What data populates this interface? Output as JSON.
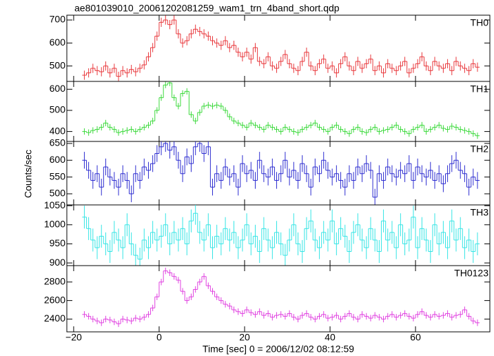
{
  "chart_data": {
    "type": "step",
    "title": "ae801039010_20061202081259_wam1_trn_4band_short.qdp",
    "xlabel": "Time [sec] 0 = 2006/12/02 08:12:59",
    "ylabel": "Counts/sec",
    "xlim": [
      -21.6,
      77.4
    ],
    "xticks": [
      {
        "value": -20,
        "label": "−20"
      },
      0,
      20,
      40,
      60
    ],
    "x": [
      -17.5,
      -16.5,
      -15.5,
      -14.5,
      -13.5,
      -12.5,
      -11.5,
      -10.5,
      -9.5,
      -8.5,
      -7.5,
      -6.5,
      -5.5,
      -4.5,
      -3.5,
      -2.5,
      -1.5,
      -0.5,
      0.5,
      1.5,
      2.5,
      3.5,
      4.5,
      5.5,
      6.5,
      7.5,
      8.5,
      9.5,
      10.5,
      11.5,
      12.5,
      13.5,
      14.5,
      15.5,
      16.5,
      17.5,
      18.5,
      19.5,
      20.5,
      21.5,
      22.5,
      23.5,
      24.5,
      25.5,
      26.5,
      27.5,
      28.5,
      29.5,
      30.5,
      31.5,
      32.5,
      33.5,
      34.5,
      35.5,
      36.5,
      37.5,
      38.5,
      39.5,
      40.5,
      41.5,
      42.5,
      43.5,
      44.5,
      45.5,
      46.5,
      47.5,
      48.5,
      49.5,
      50.5,
      51.5,
      52.5,
      53.5,
      54.5,
      55.5,
      56.5,
      57.5,
      58.5,
      59.5,
      60.5,
      61.5,
      62.5,
      63.5,
      64.5,
      65.5,
      66.5,
      67.5,
      68.5,
      69.5,
      70.5,
      71.5,
      72.5,
      73.5,
      74.5
    ],
    "panels": [
      {
        "name": "TH0",
        "color": "#e8363a",
        "error": 20,
        "ylim": [
          433,
          721
        ],
        "yticks": [
          500,
          600,
          700
        ],
        "values": [
          460,
          470,
          490,
          480,
          475,
          500,
          470,
          490,
          455,
          480,
          470,
          485,
          475,
          490,
          505,
          540,
          580,
          630,
          690,
          700,
          680,
          700,
          640,
          600,
          610,
          640,
          660,
          650,
          640,
          630,
          610,
          600,
          590,
          610,
          580,
          590,
          560,
          540,
          560,
          530,
          580,
          520,
          510,
          540,
          500,
          490,
          520,
          550,
          510,
          490,
          480,
          520,
          560,
          500,
          480,
          510,
          530,
          490,
          500,
          470,
          510,
          540,
          500,
          480,
          520,
          490,
          510,
          530,
          480,
          500,
          470,
          510,
          490,
          480,
          500,
          520,
          470,
          490,
          510,
          540,
          500,
          480,
          520,
          500,
          490,
          510,
          480,
          520,
          500,
          490,
          480,
          510,
          495
        ]
      },
      {
        "name": "TH1",
        "color": "#3ad93a",
        "error": 15,
        "ylim": [
          353,
          637
        ],
        "yticks": [
          400,
          500,
          600
        ],
        "values": [
          400,
          395,
          405,
          410,
          420,
          440,
          420,
          410,
          395,
          400,
          405,
          410,
          400,
          410,
          420,
          430,
          450,
          500,
          560,
          620,
          630,
          560,
          520,
          580,
          590,
          480,
          450,
          490,
          520,
          525,
          520,
          525,
          520,
          500,
          470,
          450,
          440,
          430,
          420,
          440,
          430,
          420,
          410,
          430,
          420,
          410,
          400,
          420,
          410,
          400,
          395,
          410,
          420,
          430,
          440,
          420,
          410,
          400,
          420,
          430,
          410,
          400,
          390,
          410,
          420,
          400,
          395,
          410,
          420,
          400,
          405,
          410,
          420,
          430,
          410,
          400,
          390,
          410,
          420,
          430,
          400,
          410,
          420,
          430,
          415,
          410,
          425,
          420,
          410,
          405,
          400,
          390,
          380
        ]
      },
      {
        "name": "TH2",
        "color": "#2b2bd0",
        "error": 25,
        "ylim": [
          467,
          656
        ],
        "yticks": [
          500,
          550,
          600,
          650
        ],
        "values": [
          600,
          570,
          540,
          560,
          520,
          580,
          550,
          540,
          520,
          560,
          540,
          500,
          560,
          540,
          580,
          570,
          590,
          620,
          640,
          650,
          630,
          640,
          600,
          560,
          610,
          590,
          640,
          650,
          620,
          640,
          520,
          560,
          540,
          580,
          550,
          560,
          520,
          590,
          560,
          570,
          540,
          600,
          560,
          550,
          580,
          540,
          560,
          600,
          550,
          570,
          540,
          590,
          560,
          520,
          580,
          560,
          600,
          570,
          550,
          560,
          540,
          520,
          560,
          540,
          580,
          560,
          590,
          570,
          490,
          560,
          540,
          580,
          560,
          550,
          570,
          560,
          590,
          540,
          580,
          560,
          550,
          570,
          540,
          560,
          530,
          560,
          590,
          600,
          570,
          560,
          520,
          550,
          540
        ]
      },
      {
        "name": "TH3",
        "color": "#33e5e5",
        "error": 30,
        "ylim": [
          893,
          1052
        ],
        "yticks": [
          900,
          950,
          1000,
          1050
        ],
        "values": [
          1020,
          990,
          960,
          940,
          970,
          950,
          930,
          980,
          960,
          940,
          1000,
          950,
          920,
          910,
          960,
          940,
          980,
          960,
          970,
          1000,
          950,
          980,
          960,
          990,
          950,
          1010,
          1030,
          980,
          960,
          1000,
          940,
          970,
          950,
          990,
          960,
          980,
          940,
          960,
          1000,
          950,
          970,
          930,
          990,
          960,
          940,
          980,
          950,
          920,
          960,
          1000,
          950,
          930,
          990,
          1010,
          960,
          940,
          980,
          960,
          1010,
          950,
          990,
          970,
          930,
          980,
          1000,
          960,
          940,
          990,
          960,
          930,
          1010,
          960,
          980,
          940,
          1000,
          950,
          960,
          1020,
          940,
          990,
          960,
          930,
          1000,
          950,
          980,
          940,
          1010,
          960,
          990,
          940,
          960,
          930,
          950
        ]
      },
      {
        "name": "TH0123",
        "color": "#e040e0",
        "error": 35,
        "ylim": [
          2262,
          2977
        ],
        "yticks": [
          2400,
          2600,
          2800
        ],
        "values": [
          2450,
          2430,
          2400,
          2380,
          2360,
          2400,
          2390,
          2370,
          2350,
          2400,
          2390,
          2380,
          2410,
          2400,
          2420,
          2450,
          2520,
          2640,
          2800,
          2920,
          2900,
          2860,
          2820,
          2700,
          2600,
          2640,
          2720,
          2800,
          2860,
          2760,
          2700,
          2640,
          2600,
          2560,
          2540,
          2500,
          2480,
          2460,
          2500,
          2470,
          2450,
          2480,
          2440,
          2460,
          2420,
          2440,
          2450,
          2430,
          2460,
          2420,
          2400,
          2440,
          2460,
          2420,
          2400,
          2430,
          2450,
          2410,
          2420,
          2440,
          2400,
          2430,
          2460,
          2420,
          2400,
          2450,
          2430,
          2410,
          2440,
          2420,
          2400,
          2430,
          2450,
          2420,
          2440,
          2460,
          2430,
          2410,
          2450,
          2480,
          2440,
          2420,
          2450,
          2430,
          2440,
          2460,
          2420,
          2440,
          2450,
          2500,
          2430,
          2380,
          2360
        ]
      }
    ]
  }
}
